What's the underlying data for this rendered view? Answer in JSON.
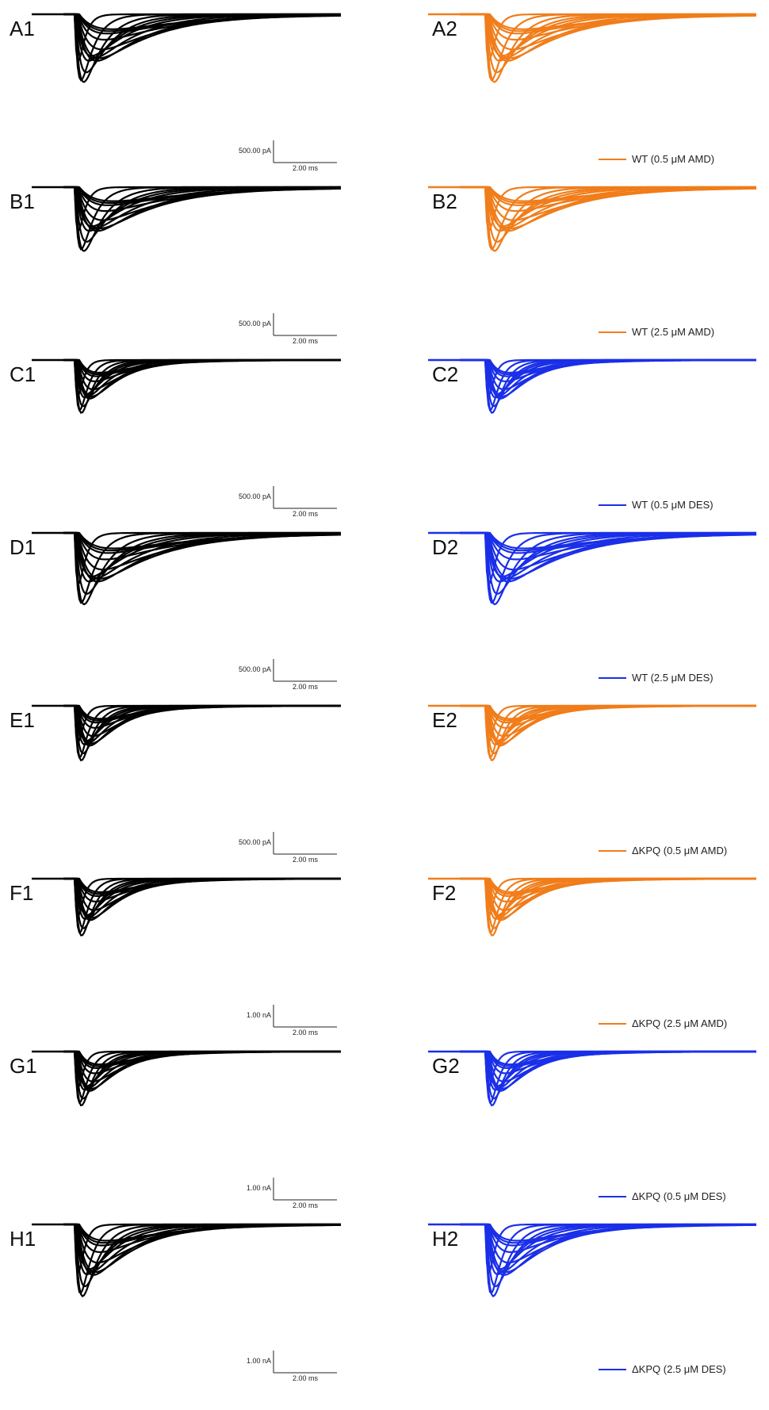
{
  "colors": {
    "control": "#000000",
    "amd": "#f07d1a",
    "des": "#1a2fe8"
  },
  "scale_bar": {
    "time_label": "2.00 ms"
  },
  "chart_data": [
    {
      "type": "line",
      "panel": "A1",
      "color": "control",
      "scale_current": "500.00 pA",
      "trace_count": 14,
      "legend": ""
    },
    {
      "type": "line",
      "panel": "A2",
      "color": "amd",
      "scale_current": "",
      "trace_count": 14,
      "legend": "WT (0.5 μM AMD)"
    },
    {
      "type": "line",
      "panel": "B1",
      "color": "control",
      "scale_current": "500.00 pA",
      "trace_count": 14,
      "legend": ""
    },
    {
      "type": "line",
      "panel": "B2",
      "color": "amd",
      "scale_current": "",
      "trace_count": 14,
      "legend": "WT (2.5 μM AMD)"
    },
    {
      "type": "line",
      "panel": "C1",
      "color": "control",
      "scale_current": "500.00 pA",
      "trace_count": 14,
      "legend": ""
    },
    {
      "type": "line",
      "panel": "C2",
      "color": "des",
      "scale_current": "",
      "trace_count": 14,
      "legend": "WT (0.5 μM DES)"
    },
    {
      "type": "line",
      "panel": "D1",
      "color": "control",
      "scale_current": "500.00 pA",
      "trace_count": 14,
      "legend": ""
    },
    {
      "type": "line",
      "panel": "D2",
      "color": "des",
      "scale_current": "",
      "trace_count": 14,
      "legend": "WT (2.5 μM DES)"
    },
    {
      "type": "line",
      "panel": "E1",
      "color": "control",
      "scale_current": "500.00 pA",
      "trace_count": 14,
      "legend": ""
    },
    {
      "type": "line",
      "panel": "E2",
      "color": "amd",
      "scale_current": "",
      "trace_count": 14,
      "legend": "ΔKPQ (0.5 μM AMD)"
    },
    {
      "type": "line",
      "panel": "F1",
      "color": "control",
      "scale_current": "1.00 nA",
      "trace_count": 14,
      "legend": ""
    },
    {
      "type": "line",
      "panel": "F2",
      "color": "amd",
      "scale_current": "",
      "trace_count": 14,
      "legend": "ΔKPQ (2.5 μM AMD)"
    },
    {
      "type": "line",
      "panel": "G1",
      "color": "control",
      "scale_current": "1.00 nA",
      "trace_count": 14,
      "legend": ""
    },
    {
      "type": "line",
      "panel": "G2",
      "color": "des",
      "scale_current": "",
      "trace_count": 14,
      "legend": "ΔKPQ (0.5 μM DES)"
    },
    {
      "type": "line",
      "panel": "H1",
      "color": "control",
      "scale_current": "1.00 nA",
      "trace_count": 14,
      "legend": ""
    },
    {
      "type": "line",
      "panel": "H2",
      "color": "des",
      "scale_current": "",
      "trace_count": 14,
      "legend": "ΔKPQ (2.5 μM DES)"
    }
  ]
}
